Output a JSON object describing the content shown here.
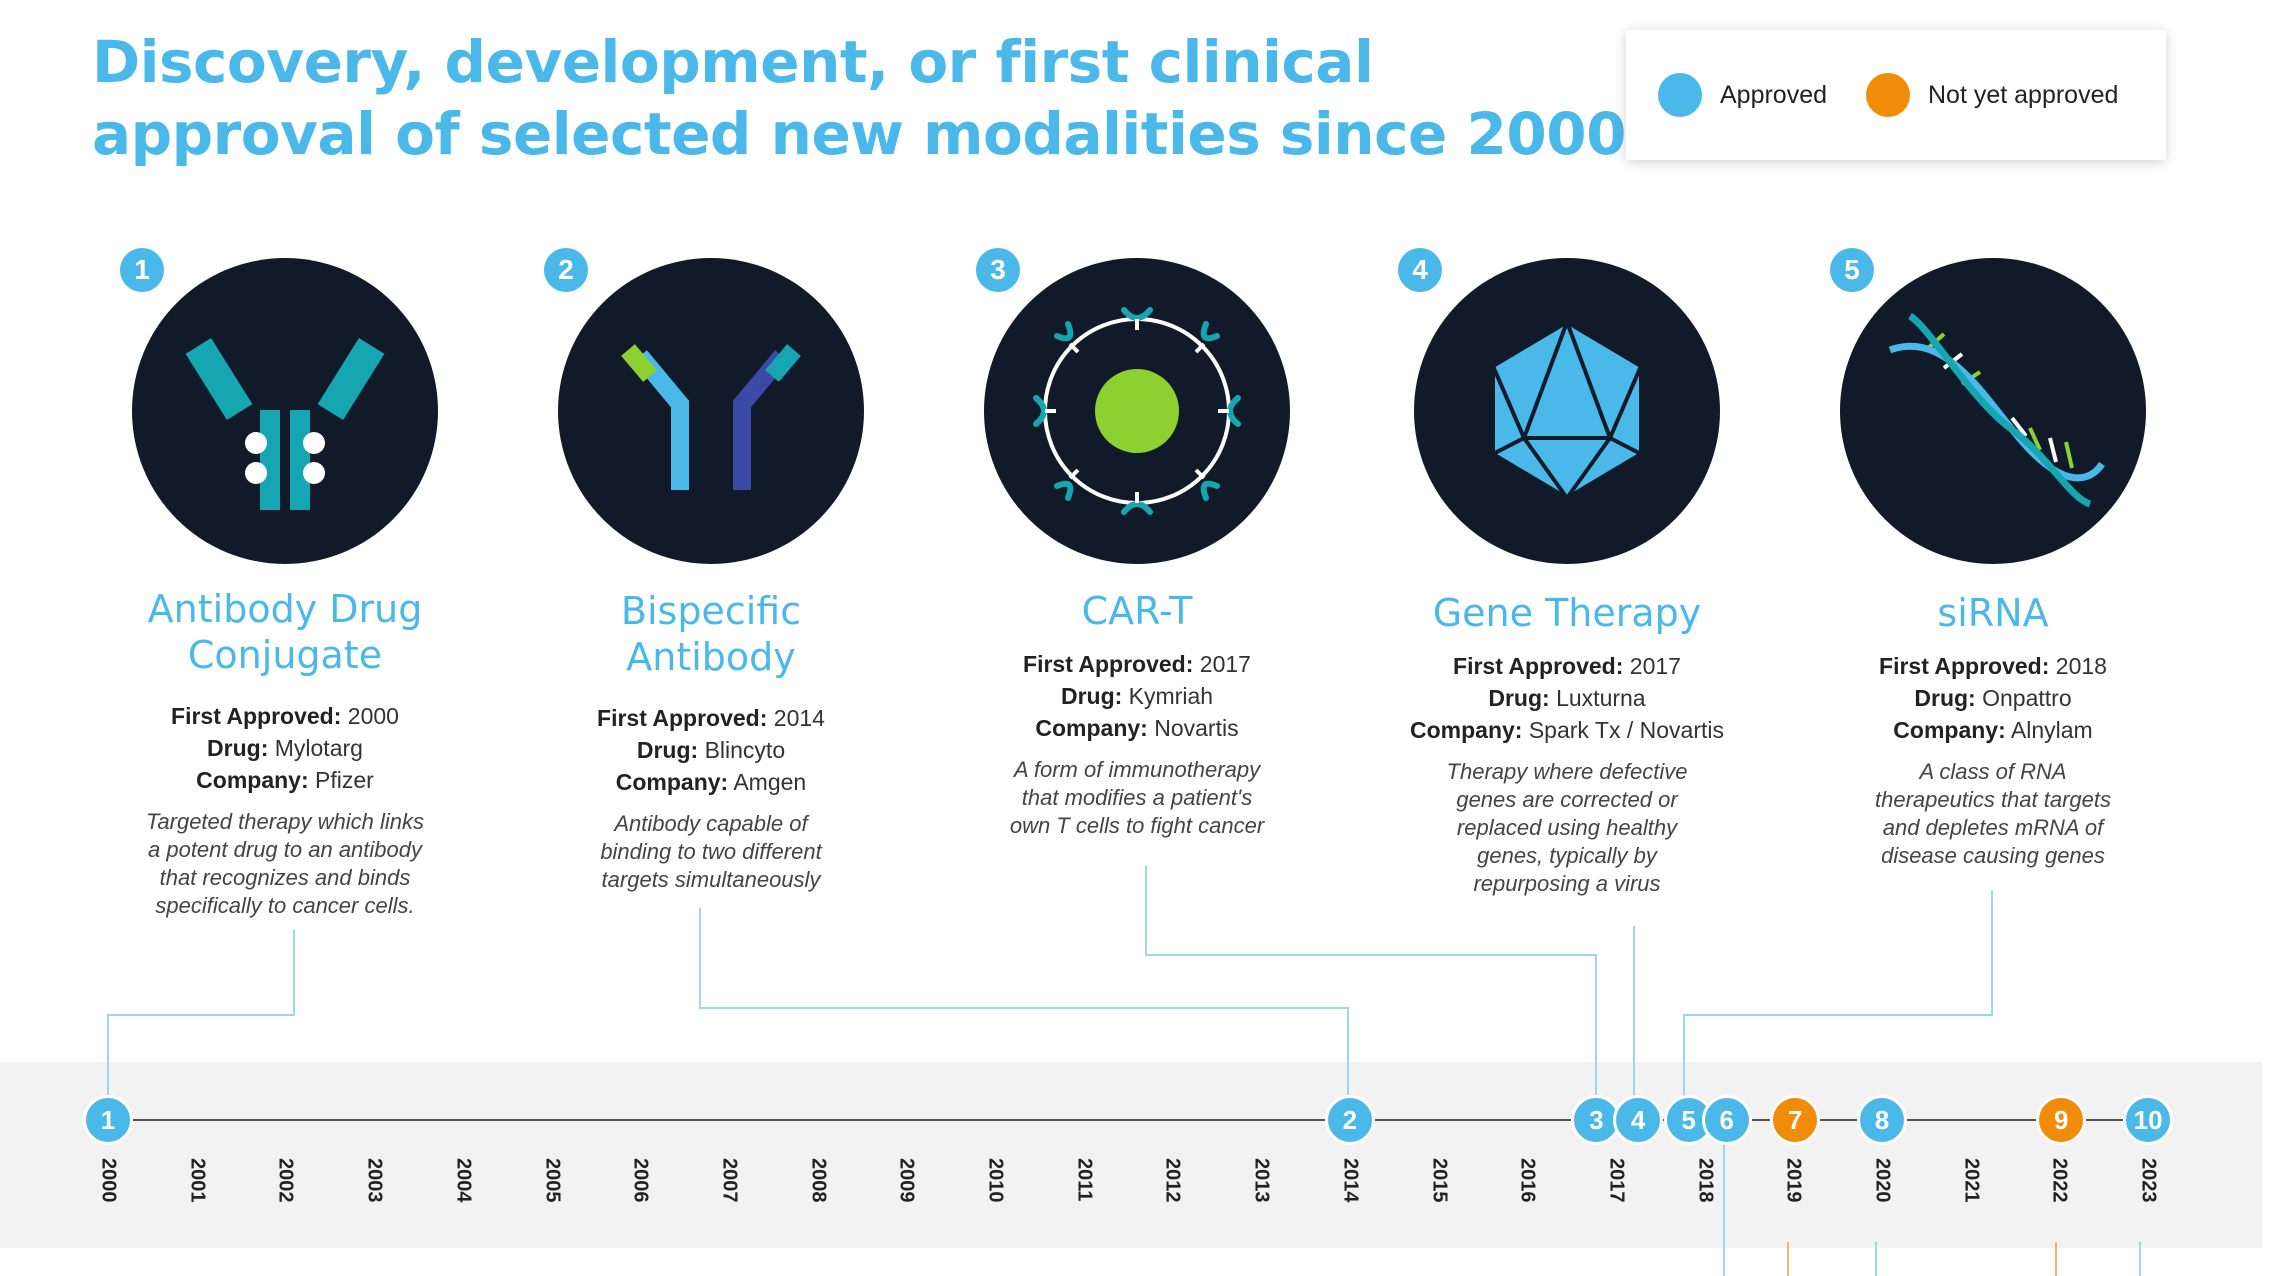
{
  "title": {
    "line1": "Discovery, development, or first clinical",
    "line2": "approval of selected new modalities since 2000"
  },
  "legend": {
    "approved_label": "Approved",
    "not_approved_label": "Not yet approved"
  },
  "colors": {
    "approved": "#4bb8ea",
    "not_approved": "#f08c0a",
    "circle_bg": "#111a28",
    "title": "#4bb8ea",
    "teal": "#16a6b2",
    "lime": "#8cd130",
    "navy": "#3a4aa6"
  },
  "cards": [
    {
      "num": "1",
      "title_lines": [
        "Antibody Drug",
        "Conjugate"
      ],
      "icon": "antibody-drug-conjugate-icon",
      "first_approved_label": "First Approved:",
      "first_approved": "2000",
      "drug_label": "Drug:",
      "drug": "Mylotarg",
      "company_label": "Company:",
      "company": "Pfizer",
      "desc_lines": [
        "Targeted therapy which links",
        "a potent drug to an antibody",
        "that recognizes and binds",
        "specifically to cancer cells."
      ]
    },
    {
      "num": "2",
      "title_lines": [
        "Bispecific",
        "Antibody"
      ],
      "icon": "bispecific-antibody-icon",
      "first_approved_label": "First Approved:",
      "first_approved": "2014",
      "drug_label": "Drug:",
      "drug": "Blincyto",
      "company_label": "Company:",
      "company": "Amgen",
      "desc_lines": [
        "Antibody capable of",
        "binding to two different",
        "targets simultaneously"
      ]
    },
    {
      "num": "3",
      "title_lines": [
        "CAR-T"
      ],
      "icon": "car-t-cell-icon",
      "first_approved_label": "First Approved:",
      "first_approved": "2017",
      "drug_label": "Drug:",
      "drug": "Kymriah",
      "company_label": "Company:",
      "company": "Novartis",
      "desc_lines": [
        "A form of immunotherapy",
        "that modifies a patient's",
        "own T cells to fight cancer"
      ]
    },
    {
      "num": "4",
      "title_lines": [
        "Gene Therapy"
      ],
      "icon": "viral-capsid-icon",
      "first_approved_label": "First Approved:",
      "first_approved": "2017",
      "drug_label": "Drug:",
      "drug": "Luxturna",
      "company_label": "Company:",
      "company": "Spark Tx / Novartis",
      "desc_lines": [
        "Therapy where defective",
        "genes are corrected or",
        "replaced using healthy",
        "genes, typically by",
        "repurposing a virus"
      ]
    },
    {
      "num": "5",
      "title_lines": [
        "siRNA"
      ],
      "icon": "rna-helix-icon",
      "first_approved_label": "First Approved:",
      "first_approved": "2018",
      "drug_label": "Drug:",
      "drug": "Onpattro",
      "company_label": "Company:",
      "company": "Alnylam",
      "desc_lines": [
        "A class of RNA",
        "therapeutics that targets",
        "and depletes mRNA of",
        "disease causing genes"
      ]
    }
  ],
  "timeline": {
    "years": [
      "2000",
      "2001",
      "2002",
      "2003",
      "2004",
      "2005",
      "2006",
      "2007",
      "2008",
      "2009",
      "2010",
      "2011",
      "2012",
      "2013",
      "2014",
      "2015",
      "2016",
      "2017",
      "2018",
      "2019",
      "2020",
      "2021",
      "2022",
      "2023"
    ],
    "markers": [
      {
        "label": "1",
        "year": 2000.0,
        "status": "approved"
      },
      {
        "label": "2",
        "year": 2014.0,
        "status": "approved"
      },
      {
        "label": "3",
        "year": 2016.78,
        "status": "approved"
      },
      {
        "label": "4",
        "year": 2017.25,
        "status": "approved"
      },
      {
        "label": "5",
        "year": 2017.82,
        "status": "approved"
      },
      {
        "label": "6",
        "year": 2018.25,
        "status": "approved"
      },
      {
        "label": "7",
        "year": 2019.02,
        "status": "not_approved"
      },
      {
        "label": "8",
        "year": 2020.0,
        "status": "approved"
      },
      {
        "label": "9",
        "year": 2022.02,
        "status": "not_approved"
      },
      {
        "label": "10",
        "year": 2023.0,
        "status": "approved"
      }
    ]
  }
}
